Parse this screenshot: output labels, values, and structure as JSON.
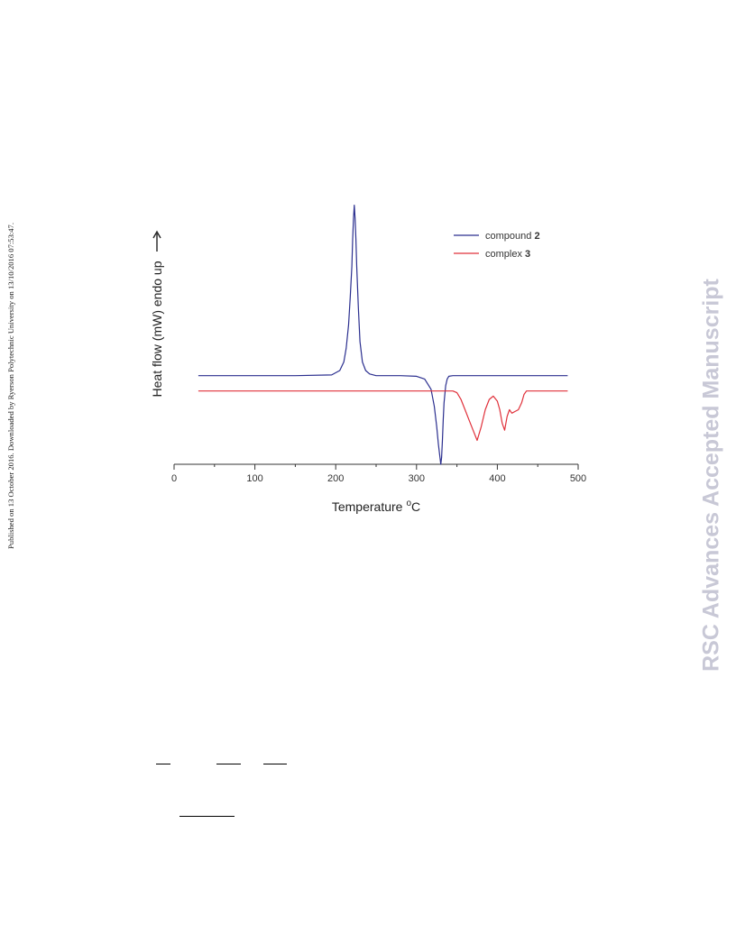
{
  "side_note": "Published on 13 October 2016. Downloaded by Ryerson Polytechnic University on 13/10/2016 07:53:47.",
  "watermark": "RSC Advances Accepted Manuscript",
  "chart_data": {
    "type": "line",
    "title": "",
    "xlabel": "Temperature",
    "xlabel_unit": "oC",
    "ylabel": "Heat flow (mW) endo up",
    "xlim": [
      0,
      500
    ],
    "ylim": [
      -2.6,
      5.2
    ],
    "xticks": [
      0,
      100,
      200,
      300,
      400,
      500
    ],
    "yticks_shown": false,
    "grid": false,
    "legend_position": "top-right",
    "series": [
      {
        "name": "compound 2",
        "label_prefix": "compound",
        "label_id": "2",
        "color": "#2b2f8f",
        "x": [
          30,
          100,
          150,
          195,
          205,
          210,
          213,
          216,
          218,
          220,
          221,
          222,
          223,
          224,
          225,
          226,
          228,
          230,
          233,
          237,
          242,
          250,
          280,
          300,
          310,
          318,
          322,
          325,
          327,
          329,
          330,
          331,
          332,
          333,
          334,
          336,
          338,
          340,
          345,
          400,
          450,
          487
        ],
        "y": [
          0.0,
          0.0,
          0.0,
          0.02,
          0.15,
          0.4,
          0.8,
          1.5,
          2.3,
          3.2,
          4.0,
          4.6,
          5.0,
          4.6,
          4.0,
          3.2,
          2.0,
          1.0,
          0.4,
          0.15,
          0.05,
          0.0,
          0.0,
          -0.02,
          -0.1,
          -0.4,
          -0.9,
          -1.5,
          -2.0,
          -2.4,
          -2.6,
          -2.4,
          -1.9,
          -1.3,
          -0.8,
          -0.3,
          -0.1,
          -0.02,
          0.0,
          0.0,
          0.0,
          0.0
        ]
      },
      {
        "name": "complex 3",
        "label_prefix": "complex",
        "label_id": "3",
        "color": "#e0303a",
        "x": [
          30,
          150,
          300,
          345,
          350,
          355,
          360,
          365,
          370,
          375,
          380,
          385,
          390,
          395,
          400,
          403,
          406,
          409,
          412,
          415,
          418,
          422,
          426,
          430,
          433,
          436,
          487
        ],
        "y": [
          -0.45,
          -0.45,
          -0.45,
          -0.45,
          -0.5,
          -0.7,
          -1.0,
          -1.3,
          -1.6,
          -1.9,
          -1.5,
          -1.0,
          -0.7,
          -0.6,
          -0.75,
          -1.0,
          -1.4,
          -1.6,
          -1.2,
          -1.0,
          -1.1,
          -1.05,
          -1.0,
          -0.8,
          -0.55,
          -0.45,
          -0.45
        ]
      }
    ]
  }
}
